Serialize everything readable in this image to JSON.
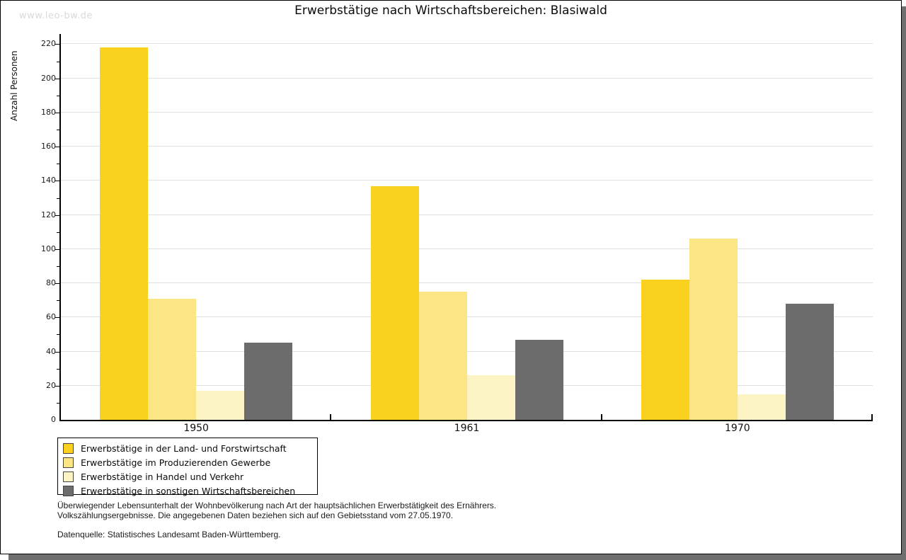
{
  "watermark": "www.leo-bw.de",
  "title": "Erwerbstätige nach Wirtschaftsbereichen: Blasiwald",
  "chart_data": {
    "type": "bar",
    "title": "Erwerbstätige nach Wirtschaftsbereichen: Blasiwald",
    "xlabel": "",
    "ylabel": "Anzahl Personen",
    "categories": [
      "1950",
      "1961",
      "1970"
    ],
    "series": [
      {
        "name": "Erwerbstätige in der Land- und Forstwirtschaft",
        "color": "#fbd120",
        "values": [
          218,
          137,
          82
        ]
      },
      {
        "name": "Erwerbstätige im Produzierenden Gewerbe",
        "color": "#fbe585",
        "values": [
          71,
          75,
          106
        ]
      },
      {
        "name": "Erwerbstätige in Handel und Verkehr",
        "color": "#fcf4c5",
        "values": [
          17,
          26,
          15
        ]
      },
      {
        "name": "Erwerbstätige in sonstigen Wirtschaftsbereichen",
        "color": "#6c6c6c",
        "values": [
          45,
          47,
          68
        ]
      }
    ],
    "ylim": [
      0,
      226
    ],
    "ytick_step": 20,
    "ytick_minor_step": 10,
    "ytick_max_label": 220,
    "grid": "horizontal",
    "gridline_color": "#e0e0e0",
    "legend_position": "bottom-left"
  },
  "footnotes": {
    "line1": "Überwiegender Lebensunterhalt der Wohnbevölkerung nach Art der hauptsächlichen Erwerbstätigkeit des Ernährers.",
    "line2": "Volkszählungsergebnisse. Die angegebenen Daten beziehen sich auf den Gebietsstand vom 27.05.1970.",
    "source": "Datenquelle: Statistisches Landesamt Baden-Württemberg."
  },
  "colors": {
    "series1": "#fbd120",
    "series2": "#fbe585",
    "series3": "#fcf4c5",
    "series4": "#6c6c6c",
    "gridline": "#e0e0e0",
    "watermark": "#d9d9d9",
    "frame_shadow": "#6f6f6f"
  }
}
